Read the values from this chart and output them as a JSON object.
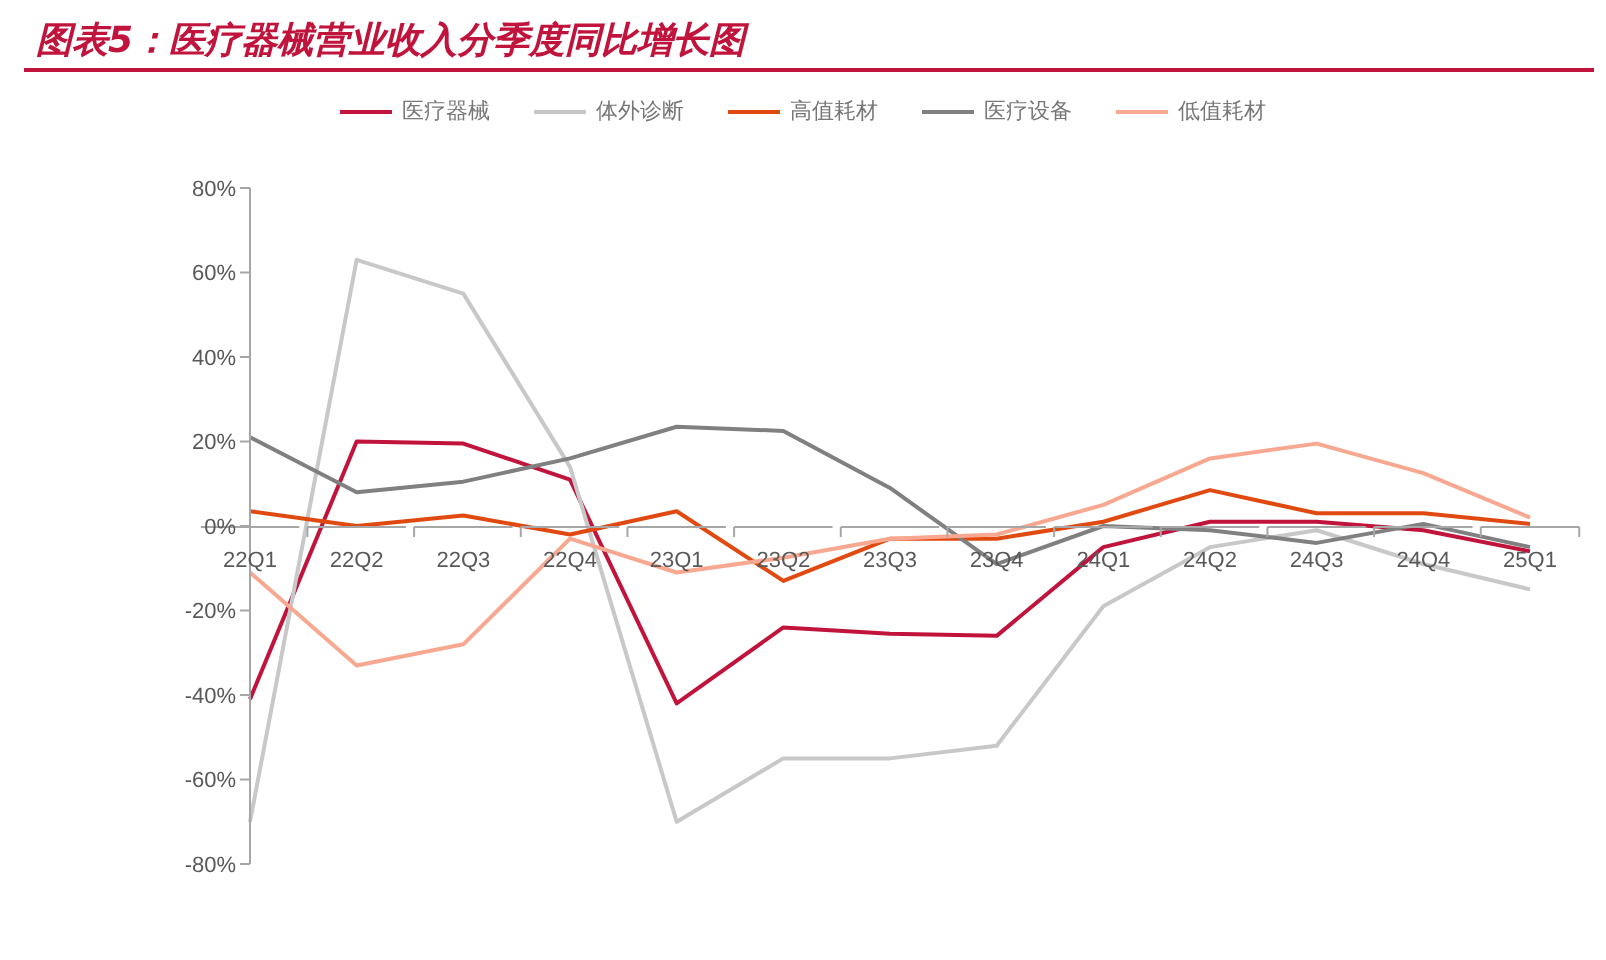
{
  "chart_data": {
    "type": "line",
    "title": "图表5：医疗器械营业收入分季度同比增长图",
    "categories": [
      "22Q1",
      "22Q2",
      "22Q3",
      "22Q4",
      "23Q1",
      "23Q2",
      "23Q3",
      "23Q4",
      "24Q1",
      "24Q2",
      "24Q3",
      "24Q4",
      "25Q1"
    ],
    "series": [
      {
        "name": "医疗器械",
        "color": "#c0143c",
        "values": [
          -41,
          20,
          19.5,
          11,
          -42,
          -24,
          -25.5,
          -26,
          -5,
          1,
          1,
          -1,
          -6
        ]
      },
      {
        "name": "体外诊断",
        "color": "#c8c8c8",
        "values": [
          -70,
          63,
          55,
          14,
          -70,
          -55,
          -55,
          -52,
          -19,
          -5,
          -1,
          -9,
          -15
        ]
      },
      {
        "name": "高值耗材",
        "color": "#e04a10",
        "values": [
          3.5,
          0,
          2.5,
          -2,
          3.5,
          -13,
          -3,
          -3,
          1,
          8.5,
          3,
          3,
          0.5
        ]
      },
      {
        "name": "医疗设备",
        "color": "#808080",
        "values": [
          21,
          8,
          10.5,
          16,
          23.5,
          22.5,
          9,
          -9,
          0,
          -1,
          -4,
          0.5,
          -5
        ]
      },
      {
        "name": "低值耗材",
        "color": "#f8a890",
        "values": [
          -11,
          -33,
          -28,
          -3,
          -11,
          -7.5,
          -3,
          -2,
          5,
          16,
          19.5,
          12.5,
          2
        ]
      }
    ],
    "ylim": [
      -80,
      80
    ],
    "yticks": [
      {
        "value": -80,
        "label": "-80%"
      },
      {
        "value": -60,
        "label": "-60%"
      },
      {
        "value": -40,
        "label": "-40%"
      },
      {
        "value": -20,
        "label": "-20%"
      },
      {
        "value": 0,
        "label": "0%"
      },
      {
        "value": 20,
        "label": "20%"
      },
      {
        "value": 40,
        "label": "40%"
      },
      {
        "value": 60,
        "label": "60%"
      },
      {
        "value": 80,
        "label": "80%"
      }
    ],
    "grid": false,
    "legend": "top",
    "marker": "none",
    "line_style": "solid"
  }
}
